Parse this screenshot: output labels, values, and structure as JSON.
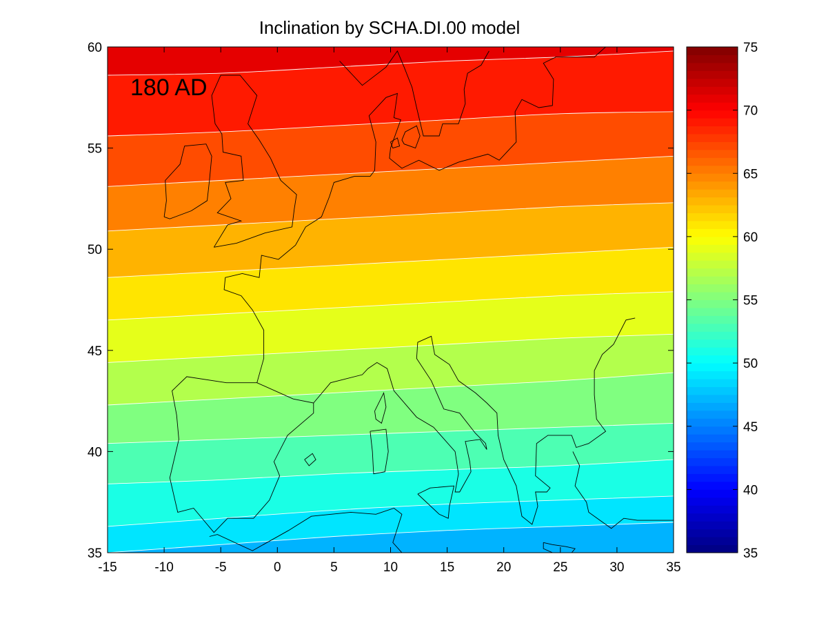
{
  "chart_data": {
    "type": "heatmap",
    "subtype": "filled-contour map",
    "title": "Inclination by SCHA.DI.00 model",
    "annotation": "180 AD",
    "xlabel": "",
    "ylabel": "",
    "xlim": [
      -15,
      35
    ],
    "ylim": [
      35,
      60
    ],
    "x_ticks": [
      -15,
      -10,
      -5,
      0,
      5,
      10,
      15,
      20,
      25,
      30,
      35
    ],
    "y_ticks": [
      35,
      40,
      45,
      50,
      55,
      60
    ],
    "colorbar": {
      "range": [
        35,
        75
      ],
      "ticks": [
        35,
        40,
        45,
        50,
        55,
        60,
        65,
        70,
        75
      ],
      "colormap": "jet"
    },
    "contour_interval": 2,
    "contour_levels": [
      48,
      50,
      52,
      54,
      56,
      58,
      60,
      62,
      64,
      66,
      68,
      70
    ],
    "contour_color": "#ffffff",
    "coastline_color": "#000000",
    "field_samples": {
      "longitude": [
        -15,
        -5,
        5,
        15,
        25,
        35
      ],
      "latitude_at_level": {
        "48": [
          35.0,
          35.4,
          35.8,
          36.1,
          36.3,
          36.5
        ],
        "50": [
          36.3,
          36.7,
          37.1,
          37.4,
          37.6,
          37.8
        ],
        "52": [
          38.4,
          38.6,
          38.9,
          39.1,
          39.3,
          39.6
        ],
        "54": [
          40.4,
          40.6,
          40.8,
          41.0,
          41.2,
          41.4
        ],
        "56": [
          42.3,
          42.6,
          42.9,
          43.2,
          43.5,
          43.9
        ],
        "58": [
          44.4,
          44.7,
          45.0,
          45.3,
          45.6,
          45.8
        ],
        "60": [
          46.5,
          46.8,
          47.1,
          47.4,
          47.7,
          47.9
        ],
        "62": [
          48.6,
          48.9,
          49.2,
          49.5,
          49.8,
          50.1
        ],
        "64": [
          50.9,
          51.2,
          51.5,
          51.8,
          52.1,
          52.3
        ],
        "66": [
          53.1,
          53.4,
          53.7,
          54.0,
          54.3,
          54.6
        ],
        "68": [
          55.6,
          55.8,
          56.1,
          56.4,
          56.7,
          56.8
        ],
        "70": [
          58.6,
          58.7,
          59.0,
          59.3,
          59.5,
          59.8
        ]
      }
    }
  }
}
